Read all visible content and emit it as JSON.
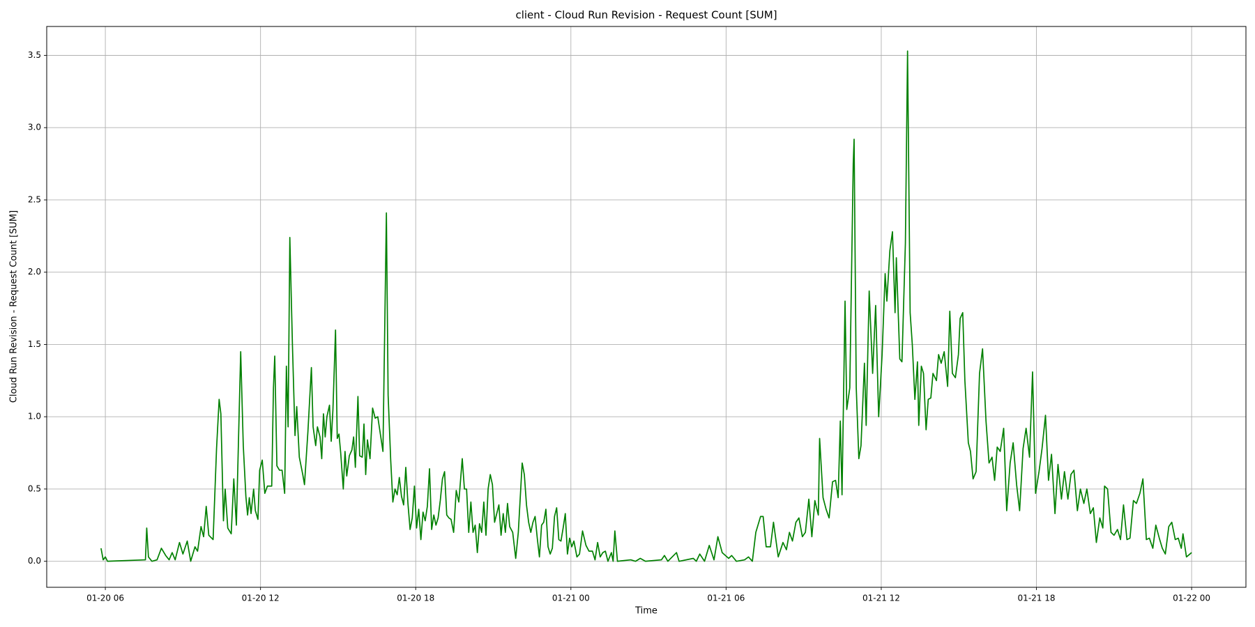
{
  "chart_data": {
    "type": "line",
    "title": "client - Cloud Run Revision - Request Count [SUM]",
    "x_label": "Time",
    "y_label": "Cloud Run Revision - Request Count [SUM]",
    "grid": true,
    "xlim": [
      "01-20 03:44",
      "01-22 02:06"
    ],
    "ylim": [
      -0.18,
      3.7
    ],
    "xticks": [
      {
        "value": "01-20 06:00",
        "label": "01-20 06"
      },
      {
        "value": "01-20 12:00",
        "label": "01-20 12"
      },
      {
        "value": "01-20 18:00",
        "label": "01-20 18"
      },
      {
        "value": "01-21 00:00",
        "label": "01-21 00"
      },
      {
        "value": "01-21 06:00",
        "label": "01-21 06"
      },
      {
        "value": "01-21 12:00",
        "label": "01-21 12"
      },
      {
        "value": "01-21 18:00",
        "label": "01-21 18"
      },
      {
        "value": "01-22 00:00",
        "label": "01-22 00"
      }
    ],
    "yticks": [
      {
        "value": 0,
        "label": "0.0"
      },
      0.5,
      {
        "value": 1,
        "label": "1.0"
      },
      1.5,
      {
        "value": 2,
        "label": "2.0"
      },
      2.5,
      {
        "value": 3,
        "label": "3.0"
      },
      3.5
    ],
    "x": [
      "01-20 05:50",
      "01-20 05:55",
      "01-20 06:00",
      "01-20 06:05",
      "01-20 07:33",
      "01-20 07:36",
      "01-20 07:40",
      "01-20 07:48",
      "01-20 08:00",
      "01-20 08:10",
      "01-20 08:20",
      "01-20 08:28",
      "01-20 08:35",
      "01-20 08:42",
      "01-20 08:52",
      "01-20 09:00",
      "01-20 09:10",
      "01-20 09:18",
      "01-20 09:28",
      "01-20 09:34",
      "01-20 09:42",
      "01-20 09:48",
      "01-20 09:54",
      "01-20 10:00",
      "01-20 10:10",
      "01-20 10:18",
      "01-20 10:24",
      "01-20 10:28",
      "01-20 10:34",
      "01-20 10:38",
      "01-20 10:44",
      "01-20 10:52",
      "01-20 10:58",
      "01-20 11:04",
      "01-20 11:14",
      "01-20 11:20",
      "01-20 11:26",
      "01-20 11:30",
      "01-20 11:34",
      "01-20 11:38",
      "01-20 11:44",
      "01-20 11:48",
      "01-20 11:54",
      "01-20 11:58",
      "01-20 12:04",
      "01-20 12:10",
      "01-20 12:16",
      "01-20 12:26",
      "01-20 12:30",
      "01-20 12:33",
      "01-20 12:38",
      "01-20 12:44",
      "01-20 12:50",
      "01-20 12:56",
      "01-20 13:00",
      "01-20 13:04",
      "01-20 13:08",
      "01-20 13:14",
      "01-20 13:20",
      "01-20 13:24",
      "01-20 13:30",
      "01-20 13:38",
      "01-20 13:42",
      "01-20 13:50",
      "01-20 13:58",
      "01-20 14:02",
      "01-20 14:08",
      "01-20 14:12",
      "01-20 14:18",
      "01-20 14:22",
      "01-20 14:26",
      "01-20 14:30",
      "01-20 14:34",
      "01-20 14:40",
      "01-20 14:44",
      "01-20 14:48",
      "01-20 14:54",
      "01-20 14:58",
      "01-20 15:02",
      "01-20 15:06",
      "01-20 15:12",
      "01-20 15:16",
      "01-20 15:20",
      "01-20 15:26",
      "01-20 15:32",
      "01-20 15:36",
      "01-20 15:40",
      "01-20 15:46",
      "01-20 15:50",
      "01-20 15:56",
      "01-20 16:00",
      "01-20 16:04",
      "01-20 16:08",
      "01-20 16:14",
      "01-20 16:20",
      "01-20 16:26",
      "01-20 16:32",
      "01-20 16:44",
      "01-20 16:52",
      "01-20 16:56",
      "01-20 17:02",
      "01-20 17:07",
      "01-20 17:12",
      "01-20 17:17",
      "01-20 17:22",
      "01-20 17:27",
      "01-20 17:32",
      "01-20 17:37",
      "01-20 17:42",
      "01-20 17:47",
      "01-20 17:52",
      "01-20 17:57",
      "01-20 18:02",
      "01-20 18:07",
      "01-20 18:12",
      "01-20 18:17",
      "01-20 18:22",
      "01-20 18:27",
      "01-20 18:32",
      "01-20 18:37",
      "01-20 18:42",
      "01-20 18:47",
      "01-20 18:52",
      "01-20 18:57",
      "01-20 19:02",
      "01-20 19:07",
      "01-20 19:12",
      "01-20 19:17",
      "01-20 19:22",
      "01-20 19:28",
      "01-20 19:34",
      "01-20 19:40",
      "01-20 19:48",
      "01-20 19:53",
      "01-20 19:58",
      "01-20 20:03",
      "01-20 20:08",
      "01-20 20:13",
      "01-20 20:18",
      "01-20 20:23",
      "01-20 20:28",
      "01-20 20:33",
      "01-20 20:38",
      "01-20 20:43",
      "01-20 20:48",
      "01-20 20:53",
      "01-20 20:58",
      "01-20 21:03",
      "01-20 21:08",
      "01-20 21:13",
      "01-20 21:18",
      "01-20 21:23",
      "01-20 21:28",
      "01-20 21:33",
      "01-20 21:38",
      "01-20 21:45",
      "01-20 21:52",
      "01-20 21:58",
      "01-20 22:07",
      "01-20 22:12",
      "01-20 22:17",
      "01-20 22:22",
      "01-20 22:27",
      "01-20 22:32",
      "01-20 22:37",
      "01-20 22:42",
      "01-20 22:47",
      "01-20 22:52",
      "01-20 22:57",
      "01-20 23:02",
      "01-20 23:07",
      "01-20 23:12",
      "01-20 23:17",
      "01-20 23:22",
      "01-20 23:27",
      "01-20 23:32",
      "01-20 23:37",
      "01-20 23:42",
      "01-20 23:47",
      "01-20 23:52",
      "01-20 23:57",
      "01-21 00:02",
      "01-21 00:07",
      "01-21 00:14",
      "01-21 00:20",
      "01-21 00:27",
      "01-21 00:35",
      "01-21 00:42",
      "01-21 00:50",
      "01-21 00:56",
      "01-21 01:02",
      "01-21 01:08",
      "01-21 01:14",
      "01-21 01:20",
      "01-21 01:26",
      "01-21 01:34",
      "01-21 01:38",
      "01-21 01:42",
      "01-21 01:48",
      "01-21 02:19",
      "01-21 02:30",
      "01-21 02:41",
      "01-21 02:53",
      "01-21 03:30",
      "01-21 03:37",
      "01-21 03:45",
      "01-21 04:05",
      "01-21 04:11",
      "01-21 04:44",
      "01-21 04:51",
      "01-21 04:59",
      "01-21 05:10",
      "01-21 05:21",
      "01-21 05:32",
      "01-21 05:41",
      "01-21 05:51",
      "01-21 06:06",
      "01-21 06:13",
      "01-21 06:24",
      "01-21 06:43",
      "01-21 06:52",
      "01-21 07:01",
      "01-21 07:09",
      "01-21 07:20",
      "01-21 07:26",
      "01-21 07:33",
      "01-21 07:43",
      "01-21 07:50",
      "01-21 08:01",
      "01-21 08:12",
      "01-21 08:20",
      "01-21 08:27",
      "01-21 08:34",
      "01-21 08:42",
      "01-21 08:49",
      "01-21 08:57",
      "01-21 09:04",
      "01-21 09:12",
      "01-21 09:19",
      "01-21 09:26",
      "01-21 09:34",
      "01-21 09:37",
      "01-21 09:45",
      "01-21 09:52",
      "01-21 09:59",
      "01-21 10:07",
      "01-21 10:14",
      "01-21 10:20",
      "01-21 10:25",
      "01-21 10:29",
      "01-21 10:36",
      "01-21 10:40",
      "01-21 10:47",
      "01-21 10:55",
      "01-21 10:57",
      "01-21 11:02",
      "01-21 11:08",
      "01-21 11:13",
      "01-21 11:21",
      "01-21 11:25",
      "01-21 11:32",
      "01-21 11:40",
      "01-21 11:47",
      "01-21 11:54",
      "01-21 12:02",
      "01-21 12:09",
      "01-21 12:13",
      "01-21 12:20",
      "01-21 12:26",
      "01-21 12:32",
      "01-21 12:35",
      "01-21 12:43",
      "01-21 12:48",
      "01-21 12:56",
      "01-21 13:01",
      "01-21 13:07",
      "01-21 13:12",
      "01-21 13:18",
      "01-21 13:24",
      "01-21 13:27",
      "01-21 13:33",
      "01-21 13:38",
      "01-21 13:44",
      "01-21 13:49",
      "01-21 13:55",
      "01-21 14:00",
      "01-21 14:08",
      "01-21 14:13",
      "01-21 14:19",
      "01-21 14:26",
      "01-21 14:34",
      "01-21 14:39",
      "01-21 14:45",
      "01-21 14:52",
      "01-21 14:59",
      "01-21 15:03",
      "01-21 15:09",
      "01-21 15:14",
      "01-21 15:22",
      "01-21 15:27",
      "01-21 15:33",
      "01-21 15:40",
      "01-21 15:48",
      "01-21 15:55",
      "01-21 16:03",
      "01-21 16:10",
      "01-21 16:17",
      "01-21 16:23",
      "01-21 16:29",
      "01-21 16:36",
      "01-21 16:44",
      "01-21 16:51",
      "01-21 16:59",
      "01-21 17:06",
      "01-21 17:14",
      "01-21 17:21",
      "01-21 17:29",
      "01-21 17:36",
      "01-21 17:44",
      "01-21 17:51",
      "01-21 17:58",
      "01-21 18:06",
      "01-21 18:13",
      "01-21 18:21",
      "01-21 18:28",
      "01-21 18:35",
      "01-21 18:43",
      "01-21 18:50",
      "01-21 18:58",
      "01-21 19:05",
      "01-21 19:13",
      "01-21 19:20",
      "01-21 19:27",
      "01-21 19:35",
      "01-21 19:42",
      "01-21 19:50",
      "01-21 19:57",
      "01-21 20:05",
      "01-21 20:12",
      "01-21 20:19",
      "01-21 20:27",
      "01-21 20:34",
      "01-21 20:38",
      "01-21 20:45",
      "01-21 20:53",
      "01-21 21:00",
      "01-21 21:08",
      "01-21 21:15",
      "01-21 21:22",
      "01-21 21:30",
      "01-21 21:37",
      "01-21 21:45",
      "01-21 21:52",
      "01-21 22:00",
      "01-21 22:07",
      "01-21 22:15",
      "01-21 22:22",
      "01-21 22:30",
      "01-21 22:37",
      "01-21 22:45",
      "01-21 22:52",
      "01-21 22:59",
      "01-21 23:07",
      "01-21 23:14",
      "01-21 23:22",
      "01-21 23:29",
      "01-21 23:36",
      "01-21 23:40",
      "01-21 23:48",
      "01-22 00:00"
    ],
    "series": [
      {
        "name": "Cloud Run Revision - Request Count [SUM]",
        "color": "#008000",
        "values": [
          0.09,
          0.01,
          0.03,
          0,
          0.01,
          0.23,
          0.03,
          0,
          0.01,
          0.09,
          0.04,
          0.01,
          0.06,
          0.01,
          0.13,
          0.05,
          0.14,
          0,
          0.1,
          0.07,
          0.24,
          0.17,
          0.38,
          0.18,
          0.15,
          0.78,
          1.12,
          1.02,
          0.28,
          0.5,
          0.23,
          0.19,
          0.57,
          0.25,
          1.45,
          0.8,
          0.45,
          0.32,
          0.44,
          0.33,
          0.5,
          0.35,
          0.29,
          0.63,
          0.7,
          0.47,
          0.52,
          0.52,
          1.2,
          1.42,
          0.66,
          0.63,
          0.63,
          0.47,
          1.35,
          0.93,
          2.24,
          1.5,
          0.87,
          1.07,
          0.72,
          0.6,
          0.53,
          0.9,
          1.34,
          0.93,
          0.8,
          0.93,
          0.86,
          0.71,
          1.02,
          0.86,
          1.0,
          1.08,
          0.83,
          1.05,
          1.6,
          0.85,
          0.88,
          0.75,
          0.5,
          0.76,
          0.59,
          0.73,
          0.77,
          0.86,
          0.65,
          1.14,
          0.73,
          0.72,
          0.95,
          0.6,
          0.84,
          0.71,
          1.06,
          0.99,
          1.0,
          0.76,
          2.41,
          1.15,
          0.7,
          0.41,
          0.5,
          0.46,
          0.58,
          0.45,
          0.39,
          0.65,
          0.4,
          0.22,
          0.3,
          0.52,
          0.23,
          0.36,
          0.15,
          0.34,
          0.28,
          0.38,
          0.64,
          0.22,
          0.32,
          0.25,
          0.3,
          0.42,
          0.57,
          0.62,
          0.32,
          0.3,
          0.29,
          0.2,
          0.49,
          0.41,
          0.71,
          0.5,
          0.5,
          0.2,
          0.41,
          0.2,
          0.25,
          0.06,
          0.26,
          0.2,
          0.41,
          0.18,
          0.5,
          0.6,
          0.53,
          0.27,
          0.33,
          0.39,
          0.18,
          0.33,
          0.2,
          0.4,
          0.24,
          0.2,
          0.02,
          0.2,
          0.68,
          0.6,
          0.39,
          0.27,
          0.2,
          0.27,
          0.31,
          0.16,
          0.03,
          0.25,
          0.27,
          0.36,
          0.1,
          0.05,
          0.09,
          0.31,
          0.37,
          0.15,
          0.14,
          0.23,
          0.33,
          0.05,
          0.16,
          0.1,
          0.14,
          0.03,
          0.05,
          0.21,
          0.11,
          0.07,
          0.07,
          0.01,
          0.13,
          0.03,
          0.06,
          0.07,
          0,
          0.06,
          0,
          0.21,
          0,
          0.01,
          0,
          0.02,
          0,
          0.01,
          0.04,
          0,
          0.06,
          0,
          0.02,
          0,
          0.05,
          0,
          0.11,
          0.01,
          0.17,
          0.06,
          0.02,
          0.04,
          0,
          0.01,
          0.03,
          0,
          0.2,
          0.31,
          0.31,
          0.1,
          0.1,
          0.27,
          0.03,
          0.13,
          0.08,
          0.2,
          0.14,
          0.27,
          0.3,
          0.17,
          0.2,
          0.43,
          0.17,
          0.42,
          0.32,
          0.85,
          0.44,
          0.36,
          0.3,
          0.55,
          0.56,
          0.44,
          0.97,
          0.46,
          1.8,
          1.05,
          1.2,
          2.75,
          2.92,
          1.2,
          0.71,
          0.8,
          1.37,
          0.94,
          1.87,
          1.3,
          1.77,
          1.0,
          1.43,
          1.99,
          1.8,
          2.15,
          2.28,
          1.72,
          2.1,
          1.4,
          1.38,
          2.2,
          3.53,
          1.72,
          1.5,
          1.12,
          1.38,
          0.94,
          1.35,
          1.3,
          0.91,
          1.12,
          1.13,
          1.3,
          1.25,
          1.43,
          1.37,
          1.45,
          1.21,
          1.73,
          1.3,
          1.27,
          1.43,
          1.68,
          1.72,
          1.25,
          0.82,
          0.76,
          0.57,
          0.62,
          1.3,
          1.47,
          0.97,
          0.68,
          0.72,
          0.56,
          0.79,
          0.76,
          0.92,
          0.35,
          0.68,
          0.82,
          0.53,
          0.35,
          0.78,
          0.92,
          0.72,
          1.31,
          0.47,
          0.62,
          0.78,
          1.01,
          0.56,
          0.74,
          0.33,
          0.67,
          0.43,
          0.62,
          0.43,
          0.6,
          0.63,
          0.35,
          0.5,
          0.4,
          0.5,
          0.33,
          0.37,
          0.13,
          0.3,
          0.23,
          0.52,
          0.5,
          0.2,
          0.18,
          0.22,
          0.15,
          0.39,
          0.15,
          0.16,
          0.42,
          0.4,
          0.47,
          0.57,
          0.15,
          0.16,
          0.09,
          0.25,
          0.16,
          0.09,
          0.05,
          0.24,
          0.27,
          0.15,
          0.16,
          0.09,
          0.19,
          0.03,
          0.06
        ]
      }
    ]
  }
}
